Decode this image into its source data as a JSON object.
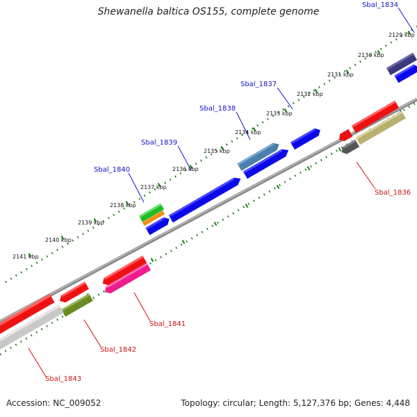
{
  "title": "Shewanella baltica OS155, complete genome",
  "footer": {
    "accession": "Accession: NC_009052",
    "summary": "Topology: circular; Length: 5,127,376 bp; Genes: 4,448"
  },
  "colors": {
    "background": "#ffffff",
    "backbone": "#8a8a8a",
    "tick_dots": "#1c7a1c",
    "forward_label": "#1010cc",
    "reverse_label": "#cc1010"
  },
  "scale": {
    "unit": "kbp",
    "ticks": [
      {
        "label": "2129 kbp"
      },
      {
        "label": "2130 kbp"
      },
      {
        "label": "2131 kbp"
      },
      {
        "label": "2132 kbp"
      },
      {
        "label": "2133 kbp"
      },
      {
        "label": "2134 kbp"
      },
      {
        "label": "2135 kbp"
      },
      {
        "label": "2136 kbp"
      },
      {
        "label": "2137 kbp"
      },
      {
        "label": "2138 kbp"
      },
      {
        "label": "2139 kbp"
      },
      {
        "label": "2140 kbp"
      },
      {
        "label": "2141 kbp"
      }
    ]
  },
  "genes_forward": [
    {
      "label": "Sbal_1834"
    },
    {
      "label": "Sbal_1837"
    },
    {
      "label": "Sbal_1838"
    },
    {
      "label": "Sbal_1839"
    },
    {
      "label": "Sbal_1840"
    }
  ],
  "genes_reverse": [
    {
      "label": "Sbal_1836"
    },
    {
      "label": "Sbal_1841"
    },
    {
      "label": "Sbal_1842"
    },
    {
      "label": "Sbal_1843"
    }
  ]
}
